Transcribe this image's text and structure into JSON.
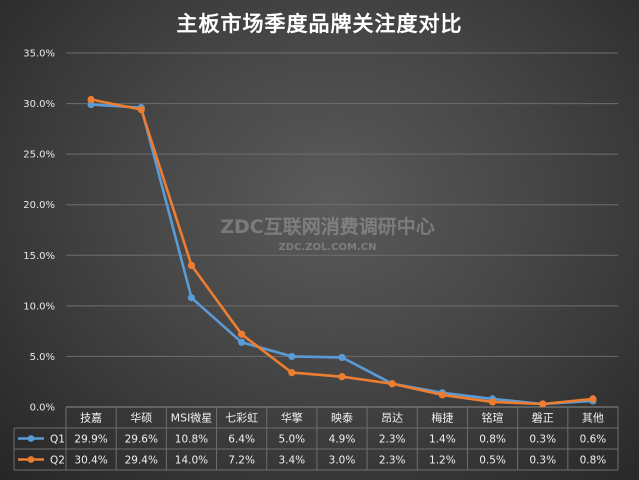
{
  "chart_data": {
    "type": "line",
    "title": "主板市场季度品牌关注度对比",
    "categories": [
      "技嘉",
      "华硕",
      "MSI微星",
      "七彩虹",
      "华擎",
      "映泰",
      "昂达",
      "梅捷",
      "铭瑄",
      "磐正",
      "其他"
    ],
    "series": [
      {
        "name": "Q1",
        "color": "#5b9bd5",
        "values": [
          29.9,
          29.6,
          10.8,
          6.4,
          5.0,
          4.9,
          2.3,
          1.4,
          0.8,
          0.3,
          0.6
        ],
        "labels": [
          "29.9%",
          "29.6%",
          "10.8%",
          "6.4%",
          "5.0%",
          "4.9%",
          "2.3%",
          "1.4%",
          "0.8%",
          "0.3%",
          "0.6%"
        ]
      },
      {
        "name": "Q2",
        "color": "#ed7d31",
        "values": [
          30.4,
          29.4,
          14.0,
          7.2,
          3.4,
          3.0,
          2.3,
          1.2,
          0.5,
          0.3,
          0.8
        ],
        "labels": [
          "30.4%",
          "29.4%",
          "14.0%",
          "7.2%",
          "3.4%",
          "3.0%",
          "2.3%",
          "1.2%",
          "0.5%",
          "0.3%",
          "0.8%"
        ]
      }
    ],
    "ylim": [
      0,
      35
    ],
    "yticks": [
      "0.0%",
      "5.0%",
      "10.0%",
      "15.0%",
      "20.0%",
      "25.0%",
      "30.0%",
      "35.0%"
    ],
    "grid": true,
    "legend": "data-table"
  },
  "watermark": {
    "main": "ZDC互联网消费调研中心",
    "sub": "ZDC.ZOL.COM.CN"
  }
}
